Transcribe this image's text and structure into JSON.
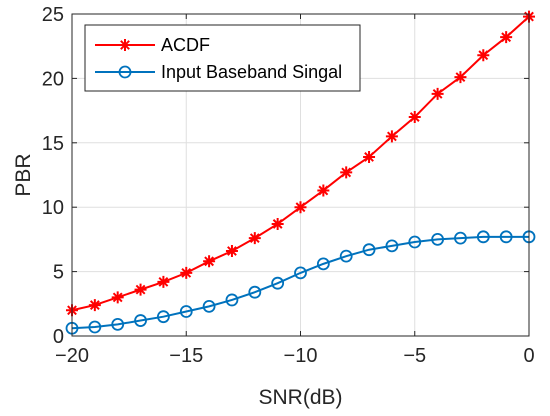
{
  "chart_data": {
    "type": "line",
    "title": "",
    "xlabel": "SNR(dB)",
    "ylabel": "PBR",
    "xlim": [
      -20,
      0
    ],
    "ylim": [
      0,
      25
    ],
    "xticks": [
      -20,
      -15,
      -10,
      -5,
      0
    ],
    "xtick_labels": [
      "−20",
      "−15",
      "−10",
      "−5",
      "0"
    ],
    "yticks": [
      0,
      5,
      10,
      15,
      20,
      25
    ],
    "ytick_labels": [
      "0",
      "5",
      "10",
      "15",
      "20",
      "25"
    ],
    "grid": true,
    "legend_position": "top-left",
    "x": [
      -20,
      -19,
      -18,
      -17,
      -16,
      -15,
      -14,
      -13,
      -12,
      -11,
      -10,
      -9,
      -8,
      -7,
      -6,
      -5,
      -4,
      -3,
      -2,
      -1,
      0
    ],
    "series": [
      {
        "name": "ACDF",
        "color": "#ff0000",
        "marker": "asterisk",
        "values": [
          2.0,
          2.4,
          3.0,
          3.6,
          4.2,
          4.9,
          5.8,
          6.6,
          7.6,
          8.7,
          10.0,
          11.3,
          12.7,
          13.9,
          15.5,
          17.0,
          18.8,
          20.1,
          21.8,
          23.2,
          24.8
        ]
      },
      {
        "name": "Input Baseband Singal",
        "color": "#0072bd",
        "marker": "circle",
        "values": [
          0.6,
          0.7,
          0.9,
          1.2,
          1.5,
          1.9,
          2.3,
          2.8,
          3.4,
          4.1,
          4.9,
          5.6,
          6.2,
          6.7,
          7.0,
          7.3,
          7.5,
          7.6,
          7.7,
          7.7,
          7.7
        ]
      }
    ]
  }
}
